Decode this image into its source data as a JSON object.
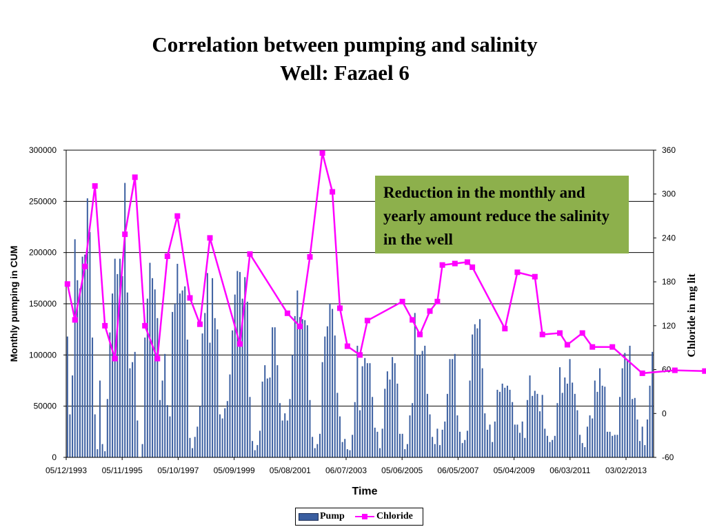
{
  "slide": {
    "title_line1": "Correlation between pumping and salinity",
    "title_line2": "Well: Fazael 6"
  },
  "callout": {
    "text": "Reduction in the monthly and yearly amount reduce the salinity in the well",
    "background": "#8db04c"
  },
  "legend": {
    "pump": "Pump",
    "chloride": "Chloride"
  },
  "colors": {
    "pump_bar": "#3a5ea0",
    "chloride_line": "#ff00ff",
    "gridline": "#000000"
  },
  "chart_data": {
    "type": "bar+line",
    "title": "Correlation between pumping and salinity",
    "subtitle": "Well: Fazael 6",
    "xlabel": "Time",
    "ylabel": "Monthly pumping in CUM",
    "y2label": "Chloride in mg lit",
    "ylim": [
      0,
      300000
    ],
    "y2lim": [
      -60,
      360
    ],
    "y_ticks": [
      "0",
      "50000",
      "100000",
      "150000",
      "200000",
      "250000",
      "300000"
    ],
    "y2_ticks": [
      "-60",
      "0",
      "60",
      "120",
      "180",
      "240",
      "300",
      "360"
    ],
    "x_tick_labels": [
      "05/12/1993",
      "05/11/1995",
      "05/10/1997",
      "05/09/1999",
      "05/08/2001",
      "06/07/2003",
      "05/06/2005",
      "06/05/2007",
      "05/04/2009",
      "06/03/2011",
      "03/02/2013"
    ],
    "grid": "horizontal",
    "legend_position": "bottom",
    "series": [
      {
        "name": "Pump",
        "type": "bar",
        "axis": "left",
        "values": [
          118000,
          42000,
          80000,
          213000,
          173000,
          165000,
          196000,
          198000,
          253000,
          220000,
          117000,
          42000,
          8000,
          75000,
          13000,
          6000,
          57000,
          122000,
          160000,
          194000,
          179000,
          194000,
          177000,
          268000,
          161000,
          87000,
          93000,
          103000,
          36000,
          0,
          13000,
          117000,
          155000,
          190000,
          175000,
          164000,
          136000,
          56000,
          75000,
          101000,
          51000,
          40000,
          142000,
          150000,
          189000,
          160000,
          163000,
          167000,
          115000,
          19000,
          9000,
          20000,
          30000,
          50000,
          121000,
          141000,
          180000,
          112000,
          175000,
          136000,
          125000,
          42000,
          38000,
          48000,
          55000,
          81000,
          124000,
          159000,
          182000,
          181000,
          155000,
          176000,
          152000,
          59000,
          16000,
          7000,
          12000,
          26000,
          74000,
          90000,
          77000,
          78000,
          127000,
          127000,
          90000,
          53000,
          36000,
          43000,
          36000,
          57000,
          100000,
          138000,
          163000,
          137000,
          135000,
          134000,
          129000,
          56000,
          20000,
          9000,
          13000,
          23000,
          93000,
          118000,
          128000,
          150000,
          145000,
          119000,
          63000,
          40000,
          15000,
          18000,
          8000,
          7000,
          22000,
          54000,
          109000,
          46000,
          89000,
          97000,
          92000,
          92000,
          59000,
          29000,
          25000,
          9000,
          28000,
          67000,
          84000,
          76000,
          98000,
          92000,
          72000,
          23000,
          23000,
          8000,
          13000,
          41000,
          53000,
          141000,
          100000,
          100000,
          104000,
          109000,
          62000,
          42000,
          20000,
          13000,
          28000,
          12000,
          27000,
          35000,
          62000,
          96000,
          96000,
          101000,
          41000,
          25000,
          14000,
          17000,
          26000,
          75000,
          120000,
          130000,
          126000,
          135000,
          87000,
          43000,
          27000,
          32000,
          15000,
          35000,
          66000,
          64000,
          72000,
          68000,
          70000,
          66000,
          54000,
          32000,
          32000,
          24000,
          35000,
          19000,
          56000,
          80000,
          60000,
          65000,
          62000,
          45000,
          61000,
          28000,
          21000,
          15000,
          17000,
          21000,
          53000,
          88000,
          63000,
          78000,
          72000,
          96000,
          73000,
          62000,
          46000,
          22000,
          14000,
          10000,
          30000,
          41000,
          38000,
          75000,
          64000,
          87000,
          70000,
          69000,
          25000,
          25000,
          21000,
          22000,
          22000,
          59000,
          87000,
          102000,
          95000,
          109000,
          57000,
          58000,
          37000,
          16000,
          30000,
          12000,
          37000,
          70000,
          103000
        ]
      },
      {
        "name": "Chloride",
        "type": "line",
        "axis": "right",
        "points": [
          [
            0,
            177
          ],
          [
            3,
            128
          ],
          [
            7,
            201
          ],
          [
            11,
            311
          ],
          [
            15,
            120
          ],
          [
            19,
            75
          ],
          [
            23,
            245
          ],
          [
            27,
            323
          ],
          [
            31,
            120
          ],
          [
            36,
            75
          ],
          [
            40,
            215
          ],
          [
            44,
            270
          ],
          [
            49,
            158
          ],
          [
            53,
            122
          ],
          [
            57,
            240
          ],
          [
            69,
            95
          ],
          [
            73,
            218
          ],
          [
            88,
            137
          ],
          [
            93,
            119
          ],
          [
            97,
            214
          ],
          [
            102,
            356
          ],
          [
            106,
            303
          ],
          [
            109,
            144
          ],
          [
            112,
            92
          ],
          [
            117,
            80
          ],
          [
            120,
            127
          ],
          [
            134,
            153
          ],
          [
            138,
            128
          ],
          [
            141,
            108
          ],
          [
            145,
            140
          ],
          [
            148,
            153
          ],
          [
            150,
            203
          ],
          [
            155,
            205
          ],
          [
            160,
            207
          ],
          [
            162,
            200
          ],
          [
            175,
            116
          ],
          [
            180,
            193
          ],
          [
            187,
            187
          ],
          [
            190,
            108
          ],
          [
            197,
            110
          ],
          [
            200,
            94
          ],
          [
            206,
            110
          ],
          [
            210,
            91
          ],
          [
            218,
            91
          ],
          [
            230,
            55
          ],
          [
            243,
            59
          ],
          [
            255,
            58
          ],
          [
            269,
            82
          ],
          [
            285,
            68
          ],
          [
            301,
            55
          ],
          [
            310,
            101
          ],
          [
            318,
            57
          ],
          [
            331,
            62
          ],
          [
            341,
            62
          ],
          [
            348,
            62
          ]
        ]
      }
    ]
  }
}
